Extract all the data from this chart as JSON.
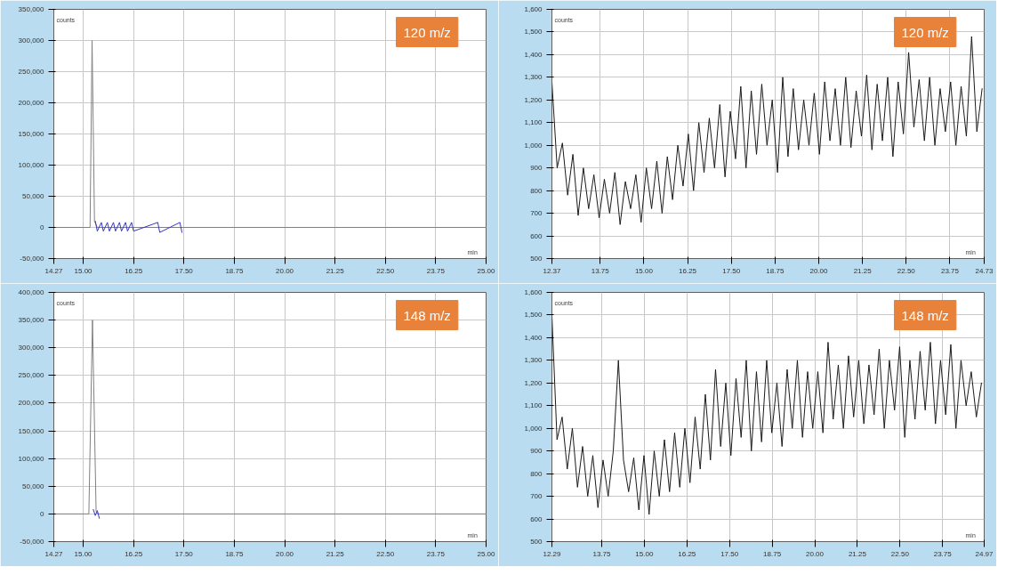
{
  "chart_data": [
    {
      "type": "line",
      "title": "120 m/z",
      "xlabel": "min",
      "ylabel": "counts",
      "grid": true,
      "xlim": [
        14.27,
        25.0
      ],
      "ylim": [
        -50000,
        350000
      ],
      "xticks": [
        {
          "value": 14.27,
          "label": "14.27"
        },
        {
          "value": 15.0,
          "label": "15.00"
        },
        {
          "value": 16.25,
          "label": "16.25"
        },
        {
          "value": 17.5,
          "label": "17.50"
        },
        {
          "value": 18.75,
          "label": "18.75"
        },
        {
          "value": 20.0,
          "label": "20.00"
        },
        {
          "value": 21.25,
          "label": "21.25"
        },
        {
          "value": 22.5,
          "label": "22.50"
        },
        {
          "value": 23.75,
          "label": "23.75"
        },
        {
          "value": 25.0,
          "label": "25.00"
        }
      ],
      "yticks": [
        {
          "value": -50000,
          "label": "-50,000"
        },
        {
          "value": 0,
          "label": "0"
        },
        {
          "value": 50000,
          "label": "50,000"
        },
        {
          "value": 100000,
          "label": "100,000"
        },
        {
          "value": 150000,
          "label": "150,000"
        },
        {
          "value": 200000,
          "label": "200,000"
        },
        {
          "value": 250000,
          "label": "250,000"
        },
        {
          "value": 300000,
          "label": "300,000"
        },
        {
          "value": 350000,
          "label": "350,000"
        }
      ],
      "series": [
        {
          "color": "#808080",
          "x": [
            14.27,
            15.17,
            15.22,
            15.28,
            15.35,
            25.0
          ],
          "values": [
            0,
            0,
            300000,
            10000,
            0,
            0
          ]
        },
        {
          "color": "#3535c0",
          "x": [
            15.3,
            15.35,
            15.45,
            15.5,
            15.6,
            15.65,
            15.75,
            15.8,
            15.9,
            15.95,
            16.05,
            16.1,
            16.2,
            16.25,
            16.85,
            16.9,
            17.4,
            17.45
          ],
          "values": [
            10000,
            -6000,
            8000,
            -6000,
            8000,
            -6000,
            8000,
            -6000,
            8000,
            -6000,
            8000,
            -6000,
            8000,
            -6000,
            8000,
            -8000,
            8000,
            -8000
          ]
        }
      ]
    },
    {
      "type": "line",
      "title": "120 m/z",
      "xlabel": "min",
      "ylabel": "counts",
      "grid": true,
      "xlim": [
        12.37,
        24.73
      ],
      "ylim": [
        500,
        1600
      ],
      "xticks": [
        {
          "value": 12.37,
          "label": "12.37"
        },
        {
          "value": 13.75,
          "label": "13.75"
        },
        {
          "value": 15.0,
          "label": "15.00"
        },
        {
          "value": 16.25,
          "label": "16.25"
        },
        {
          "value": 17.5,
          "label": "17.50"
        },
        {
          "value": 18.75,
          "label": "18.75"
        },
        {
          "value": 20.0,
          "label": "20.00"
        },
        {
          "value": 21.25,
          "label": "21.25"
        },
        {
          "value": 22.5,
          "label": "22.50"
        },
        {
          "value": 23.75,
          "label": "23.75"
        },
        {
          "value": 24.73,
          "label": "24.73"
        }
      ],
      "yticks": [
        500,
        600,
        700,
        800,
        900,
        {
          "value": 1000,
          "label": "1,000"
        },
        {
          "value": 1100,
          "label": "1,100"
        },
        {
          "value": 1200,
          "label": "1,200"
        },
        {
          "value": 1300,
          "label": "1,300"
        },
        {
          "value": 1400,
          "label": "1,400"
        },
        {
          "value": 1500,
          "label": "1,500"
        },
        {
          "value": 1600,
          "label": "1,600"
        }
      ],
      "series": [
        {
          "color": "#1a1a1a",
          "x": [
            12.37,
            12.52,
            12.67,
            12.82,
            12.97,
            13.12,
            13.27,
            13.42,
            13.57,
            13.72,
            13.87,
            14.02,
            14.17,
            14.32,
            14.47,
            14.62,
            14.77,
            14.92,
            15.07,
            15.22,
            15.37,
            15.52,
            15.67,
            15.82,
            15.97,
            16.12,
            16.27,
            16.42,
            16.57,
            16.72,
            16.87,
            17.02,
            17.17,
            17.32,
            17.47,
            17.62,
            17.77,
            17.92,
            18.07,
            18.22,
            18.37,
            18.52,
            18.67,
            18.82,
            18.97,
            19.12,
            19.27,
            19.42,
            19.57,
            19.72,
            19.87,
            20.02,
            20.17,
            20.32,
            20.47,
            20.62,
            20.77,
            20.92,
            21.07,
            21.22,
            21.37,
            21.52,
            21.67,
            21.82,
            21.97,
            22.12,
            22.27,
            22.42,
            22.57,
            22.72,
            22.87,
            23.02,
            23.17,
            23.32,
            23.47,
            23.62,
            23.77,
            23.92,
            24.07,
            24.22,
            24.37,
            24.52,
            24.67
          ],
          "values": [
            1280,
            900,
            1010,
            780,
            960,
            690,
            900,
            720,
            870,
            680,
            850,
            700,
            880,
            650,
            840,
            720,
            870,
            660,
            900,
            720,
            930,
            700,
            950,
            760,
            1000,
            820,
            1050,
            800,
            1100,
            880,
            1120,
            900,
            1180,
            860,
            1150,
            940,
            1260,
            900,
            1240,
            960,
            1270,
            1000,
            1200,
            880,
            1300,
            950,
            1250,
            980,
            1200,
            1000,
            1230,
            960,
            1280,
            1020,
            1250,
            1000,
            1300,
            990,
            1240,
            1040,
            1310,
            980,
            1270,
            1020,
            1300,
            950,
            1280,
            1050,
            1410,
            1080,
            1290,
            1020,
            1300,
            1000,
            1250,
            1060,
            1280,
            1000,
            1260,
            1040,
            1480,
            1060,
            1250
          ]
        }
      ]
    },
    {
      "type": "line",
      "title": "148 m/z",
      "xlabel": "min",
      "ylabel": "counts",
      "grid": true,
      "xlim": [
        14.27,
        25.0
      ],
      "ylim": [
        -50000,
        400000
      ],
      "xticks": [
        {
          "value": 14.27,
          "label": "14.27"
        },
        {
          "value": 15.0,
          "label": "15.00"
        },
        {
          "value": 16.25,
          "label": "16.25"
        },
        {
          "value": 17.5,
          "label": "17.50"
        },
        {
          "value": 18.75,
          "label": "18.75"
        },
        {
          "value": 20.0,
          "label": "20.00"
        },
        {
          "value": 21.25,
          "label": "21.25"
        },
        {
          "value": 22.5,
          "label": "22.50"
        },
        {
          "value": 23.75,
          "label": "23.75"
        },
        {
          "value": 25.0,
          "label": "25.00"
        }
      ],
      "yticks": [
        {
          "value": -50000,
          "label": "-50,000"
        },
        {
          "value": 0,
          "label": "0"
        },
        {
          "value": 50000,
          "label": "50,000"
        },
        {
          "value": 100000,
          "label": "100,000"
        },
        {
          "value": 150000,
          "label": "150,000"
        },
        {
          "value": 200000,
          "label": "200,000"
        },
        {
          "value": 250000,
          "label": "250,000"
        },
        {
          "value": 300000,
          "label": "300,000"
        },
        {
          "value": 350000,
          "label": "350,000"
        },
        {
          "value": 400000,
          "label": "400,000"
        }
      ],
      "series": [
        {
          "color": "#808080",
          "x": [
            14.27,
            15.14,
            15.23,
            15.32,
            15.36,
            25.0
          ],
          "values": [
            0,
            0,
            350000,
            5000,
            0,
            0
          ]
        },
        {
          "color": "#3535c0",
          "x": [
            15.25,
            15.3,
            15.35,
            15.4
          ],
          "values": [
            8000,
            -3000,
            6000,
            -8000
          ]
        }
      ]
    },
    {
      "type": "line",
      "title": "148 m/z",
      "xlabel": "min",
      "ylabel": "counts",
      "grid": true,
      "xlim": [
        12.29,
        24.97
      ],
      "ylim": [
        500,
        1600
      ],
      "xticks": [
        {
          "value": 12.29,
          "label": "12.29"
        },
        {
          "value": 13.75,
          "label": "13.75"
        },
        {
          "value": 15.0,
          "label": "15.00"
        },
        {
          "value": 16.25,
          "label": "16.25"
        },
        {
          "value": 17.5,
          "label": "17.50"
        },
        {
          "value": 18.75,
          "label": "18.75"
        },
        {
          "value": 20.0,
          "label": "20.00"
        },
        {
          "value": 21.25,
          "label": "21.25"
        },
        {
          "value": 22.5,
          "label": "22.50"
        },
        {
          "value": 23.75,
          "label": "23.75"
        },
        {
          "value": 24.97,
          "label": "24.97"
        }
      ],
      "yticks": [
        500,
        600,
        700,
        800,
        900,
        {
          "value": 1000,
          "label": "1,000"
        },
        {
          "value": 1100,
          "label": "1,100"
        },
        {
          "value": 1200,
          "label": "1,200"
        },
        {
          "value": 1300,
          "label": "1,300"
        },
        {
          "value": 1400,
          "label": "1,400"
        },
        {
          "value": 1500,
          "label": "1,500"
        },
        {
          "value": 1600,
          "label": "1,600"
        }
      ],
      "series": [
        {
          "color": "#1a1a1a",
          "x": [
            12.29,
            12.44,
            12.59,
            12.74,
            12.89,
            13.04,
            13.19,
            13.34,
            13.49,
            13.64,
            13.79,
            13.94,
            14.09,
            14.24,
            14.39,
            14.54,
            14.69,
            14.84,
            14.99,
            15.14,
            15.29,
            15.44,
            15.59,
            15.74,
            15.89,
            16.04,
            16.19,
            16.34,
            16.49,
            16.64,
            16.79,
            16.94,
            17.09,
            17.24,
            17.39,
            17.54,
            17.69,
            17.84,
            17.99,
            18.14,
            18.29,
            18.44,
            18.59,
            18.74,
            18.89,
            19.04,
            19.19,
            19.34,
            19.49,
            19.64,
            19.79,
            19.94,
            20.09,
            20.24,
            20.39,
            20.54,
            20.69,
            20.84,
            20.99,
            21.14,
            21.29,
            21.44,
            21.59,
            21.74,
            21.89,
            22.04,
            22.19,
            22.34,
            22.49,
            22.64,
            22.79,
            22.94,
            23.09,
            23.24,
            23.39,
            23.54,
            23.69,
            23.84,
            23.99,
            24.14,
            24.29,
            24.44,
            24.59,
            24.74,
            24.89
          ],
          "values": [
            1500,
            950,
            1050,
            820,
            1000,
            740,
            920,
            700,
            880,
            650,
            860,
            700,
            900,
            1300,
            860,
            720,
            870,
            640,
            880,
            620,
            900,
            700,
            950,
            720,
            980,
            740,
            1000,
            760,
            1050,
            820,
            1150,
            860,
            1260,
            920,
            1200,
            880,
            1220,
            960,
            1300,
            900,
            1250,
            940,
            1300,
            980,
            1200,
            920,
            1260,
            1000,
            1300,
            960,
            1250,
            1000,
            1250,
            980,
            1380,
            1040,
            1280,
            1000,
            1320,
            1050,
            1300,
            1020,
            1280,
            1060,
            1350,
            1000,
            1300,
            1080,
            1360,
            960,
            1300,
            1040,
            1340,
            1080,
            1380,
            1020,
            1300,
            1060,
            1370,
            1000,
            1300,
            1100,
            1250,
            1050,
            1200
          ]
        }
      ]
    }
  ]
}
